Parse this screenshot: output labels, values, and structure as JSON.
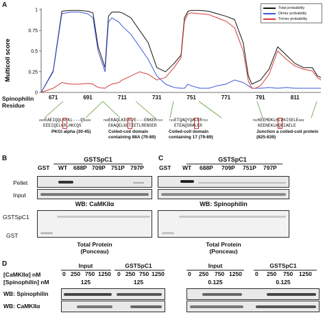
{
  "panel_a": {
    "letter": "A",
    "y_axis_label": "Multicoil score",
    "y_ticks": [
      "1",
      "0.75",
      "0.5",
      "0.25",
      "0"
    ],
    "x_row_label_line1": "Spinophilin",
    "x_row_label_line2": "Residue",
    "legend": [
      {
        "label": "Total probability",
        "color": "#111111"
      },
      {
        "label": "Dimer probability",
        "color": "#3b55d9"
      },
      {
        "label": "Trimer probability",
        "color": "#d33a3a"
      }
    ],
    "domains": [
      {
        "start": "682",
        "seq1": "EAEIQQLKRKL---QS",
        "end": "694",
        "seq2": "EEEIQELKRLHKCQS",
        "caption": "PKGI alpha (30-45)"
      },
      {
        "start": "705",
        "seq1": "EKAQLKEQSVE---ENKER",
        "end": "719",
        "seq2": "EKAQELKETIETLRENSER",
        "caption": "Coiled-coil domain containing 88A (79-89)"
      },
      {
        "start": "743",
        "seq1": "ETQAQYQALER",
        "end": "753",
        "seq2": "ETEAQSRALER",
        "caption": "Coiled-coil domain containing 17 (79-89)"
      },
      {
        "start": "791",
        "seq1": "KEEMDKLKLDKISELE",
        "end": "805",
        "seq2": "KEENEKLKQRIAELE",
        "caption": "Junction a coiled-coil protein (825-839)"
      }
    ]
  },
  "chart_data": {
    "type": "line",
    "title": "",
    "xlabel": "Spinophilin Residue",
    "ylabel": "Multicoil score",
    "x": [
      664,
      671,
      676,
      681,
      686,
      691,
      694,
      697,
      701,
      703,
      705,
      709,
      711,
      716,
      721,
      726,
      731,
      736,
      741,
      745,
      747,
      749,
      751,
      756,
      761,
      766,
      771,
      776,
      781,
      784,
      786,
      788,
      791,
      796,
      801,
      806,
      811,
      816,
      821,
      824,
      826
    ],
    "xticks": [
      671,
      691,
      711,
      731,
      751,
      771,
      791,
      811
    ],
    "xlim": [
      664,
      826
    ],
    "ylim": [
      0,
      1
    ],
    "series": [
      {
        "name": "Total probability",
        "color": "#111111",
        "values": [
          0.0,
          0.26,
          0.98,
          0.99,
          0.99,
          0.98,
          0.96,
          0.55,
          0.3,
          0.92,
          0.97,
          0.97,
          0.96,
          0.9,
          0.75,
          0.6,
          0.3,
          0.25,
          0.35,
          0.45,
          0.9,
          0.98,
          0.99,
          0.99,
          0.98,
          0.95,
          0.92,
          0.88,
          0.6,
          0.2,
          0.1,
          0.12,
          0.15,
          0.28,
          0.55,
          0.45,
          0.35,
          0.3,
          0.3,
          0.2,
          0.18
        ]
      },
      {
        "name": "Dimer probability",
        "color": "#3b55d9",
        "values": [
          0.0,
          0.25,
          0.95,
          0.97,
          0.97,
          0.95,
          0.9,
          0.5,
          0.25,
          0.85,
          0.9,
          0.85,
          0.8,
          0.7,
          0.55,
          0.4,
          0.2,
          0.1,
          0.06,
          0.05,
          0.05,
          0.1,
          0.08,
          0.05,
          0.05,
          0.08,
          0.1,
          0.15,
          0.12,
          0.08,
          0.05,
          0.05,
          0.05,
          0.06,
          0.05,
          0.06,
          0.05,
          0.05,
          0.05,
          0.05,
          0.05
        ]
      },
      {
        "name": "Trimer probability",
        "color": "#d33a3a",
        "values": [
          0.0,
          0.05,
          0.12,
          0.1,
          0.1,
          0.11,
          0.1,
          0.06,
          0.05,
          0.08,
          0.1,
          0.12,
          0.15,
          0.2,
          0.25,
          0.22,
          0.15,
          0.18,
          0.3,
          0.42,
          0.86,
          0.95,
          0.96,
          0.95,
          0.94,
          0.9,
          0.86,
          0.78,
          0.5,
          0.14,
          0.05,
          0.05,
          0.08,
          0.22,
          0.5,
          0.4,
          0.32,
          0.28,
          0.26,
          0.18,
          0.15
        ]
      }
    ]
  },
  "panel_b": {
    "letter": "B",
    "header": "GSTSpC1",
    "lanes": [
      "GST",
      "WT",
      "688P",
      "709P",
      "751P",
      "797P"
    ],
    "row_labels": [
      "Pellet",
      "Input"
    ],
    "wb_label": "WB: CaMKIIα",
    "gst_labels": [
      "GSTSpC1",
      "GST"
    ],
    "total_protein_line1": "Total Protein",
    "total_protein_line2": "(Ponceau)"
  },
  "panel_c": {
    "letter": "C",
    "header": "GSTSpC1",
    "lanes": [
      "GST",
      "WT",
      "688P",
      "709P",
      "751P",
      "797P"
    ],
    "wb_label": "WB: Spinophilin",
    "total_protein_line1": "Total Protein",
    "total_protein_line2": "(Ponceau)"
  },
  "panel_d": {
    "letter": "D",
    "row1_label": "[CaMKIIα] nM",
    "row2_label": "[Spinophilin] nM",
    "wb_row1": "WB: Spinophilin",
    "wb_row2": "WB: CaMKIIα",
    "left": {
      "group1": "Input",
      "group2": "GSTSpC1",
      "conc": [
        "0",
        "250",
        "750",
        "1250",
        "0",
        "250",
        "750",
        "1250"
      ],
      "fixed1": "125",
      "fixed2": "125"
    },
    "right": {
      "group1": "Input",
      "group2": "GSTSpC1",
      "conc": [
        "0",
        "250",
        "750",
        "1250",
        "0",
        "250",
        "750",
        "1250"
      ],
      "fixed1": "0.125",
      "fixed2": "0.125"
    }
  }
}
